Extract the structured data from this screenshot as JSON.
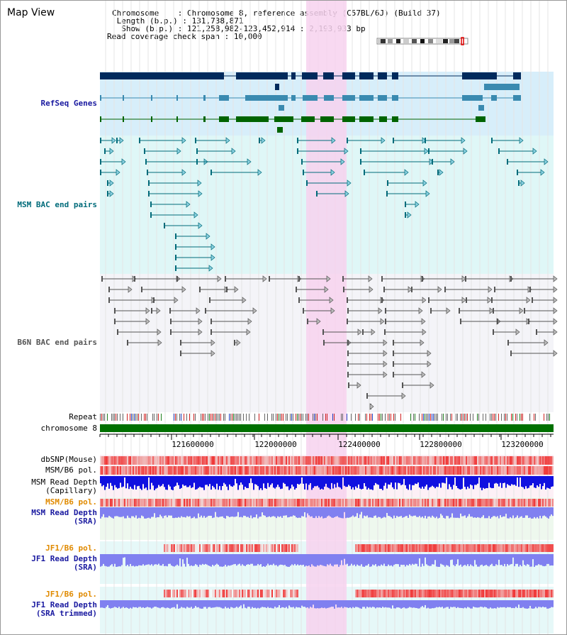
{
  "title": "Map View",
  "info": {
    "chromosome_key": "Chromosome",
    "chromosome_val": "Chromosome 8, reference assembly (C57BL/6J) (Build 37)",
    "length_key": "Length (b.p.)",
    "length_val": "131,738,871",
    "show_key": "Show (b.p.)",
    "show_val": "121,258,982-123,452,914 : 2,193,933 bp",
    "coverage_key": "Read coverage check span",
    "coverage_val": "10,000"
  },
  "tracks": {
    "refseq": "RefSeq Genes",
    "msm_bac": "MSM BAC end pairs",
    "b6n_bac": "B6N BAC end pairs",
    "repeat": "Repeat",
    "chromosome": "chromosome 8",
    "dbsnp": "dbSNP(Mouse)",
    "msm_b6_pol": "MSM/B6 pol.",
    "msm_depth_cap_1": "MSM Read Depth",
    "msm_depth_cap_2": "(Capillary)",
    "msm_b6_pol2": "MSM/B6 pol.",
    "msm_depth_sra_1": "MSM Read Depth",
    "msm_depth_sra_2": "(SRA)",
    "jf1_pol_a": "JF1/B6 pol.",
    "jf1_depth_sra_1": "JF1 Read Depth",
    "jf1_depth_sra_2": "(SRA)",
    "jf1_pol_b": "JF1/B6 pol.",
    "jf1_depth_trim_1": "JF1 Read Depth",
    "jf1_depth_trim_2": "(SRA trimmed)"
  },
  "axis_ticks": [
    "121600000",
    "122000000",
    "122400000",
    "122800000",
    "123200000"
  ],
  "colors": {
    "refseq_dark": "#002a5c",
    "refseq_mid": "#3a8ab0",
    "refseq_green": "#006400",
    "msm_bac": "#006b7a",
    "b6n_bac": "#555555",
    "highlight": "#f7d2ee",
    "chromosome": "#007000",
    "depth_blue": "#1010e0",
    "depth_light": "#8080f0",
    "pol_red": "#ee3030"
  }
}
